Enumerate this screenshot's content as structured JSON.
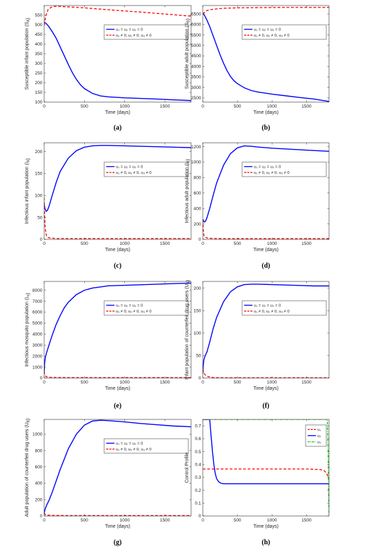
{
  "figure": {
    "x_axis_label": "Time (days)",
    "colors": {
      "no_control": "#0000ff",
      "with_control": "#ff0000",
      "u3": "#00cc00",
      "axis": "#262626"
    }
  },
  "chart_data": [
    {
      "type": "line",
      "caption": "(a)",
      "ylabel": "Susceptible infant population (S_A)",
      "xlim": [
        0,
        1825
      ],
      "ylim": [
        100,
        600
      ],
      "xticks": [
        "0",
        "500",
        "1000",
        "1500"
      ],
      "yticks": [
        "100",
        "150",
        "200",
        "250",
        "300",
        "350",
        "400",
        "450",
        "500",
        "550"
      ],
      "legend": [
        "u₁ = u₂ = u₃ = 0",
        "u₁ ≠ 0, u₂ ≠ 0, u₃ ≠ 0"
      ],
      "series": [
        {
          "style": "solid",
          "color": "#0000ff",
          "x": [
            0,
            30,
            60,
            100,
            150,
            200,
            250,
            300,
            350,
            400,
            450,
            500,
            600,
            700,
            800,
            1000,
            1200,
            1400,
            1600,
            1825
          ],
          "y": [
            515,
            505,
            490,
            465,
            430,
            385,
            340,
            295,
            253,
            218,
            190,
            170,
            145,
            132,
            127,
            122,
            119,
            116,
            112,
            108
          ]
        },
        {
          "style": "dashed",
          "color": "#ff0000",
          "x": [
            0,
            20,
            50,
            100,
            150,
            200,
            300,
            500,
            800,
            1000,
            1200,
            1500,
            1825
          ],
          "y": [
            500,
            545,
            580,
            594,
            596,
            595,
            593,
            588,
            578,
            572,
            566,
            556,
            545
          ]
        }
      ]
    },
    {
      "type": "line",
      "caption": "(b)",
      "ylabel": "Susceptible adult population (S_B)",
      "xlim": [
        0,
        1825
      ],
      "ylim": [
        2300,
        6900
      ],
      "xticks": [
        "0",
        "500",
        "1000",
        "1500"
      ],
      "yticks": [
        "2500",
        "3000",
        "3500",
        "4000",
        "4500",
        "5000",
        "5500",
        "6000",
        "6500"
      ],
      "legend": [
        "u₁ = u₂ = u₃ = 0",
        "u₁ ≠ 0, u₂ ≠ 0, u₃ ≠ 0"
      ],
      "series": [
        {
          "style": "solid",
          "color": "#0000ff",
          "x": [
            0,
            30,
            60,
            100,
            150,
            200,
            250,
            300,
            350,
            400,
            450,
            500,
            600,
            700,
            800,
            1000,
            1200,
            1400,
            1600,
            1825
          ],
          "y": [
            6550,
            6400,
            6200,
            5900,
            5450,
            5000,
            4550,
            4150,
            3800,
            3520,
            3320,
            3180,
            2980,
            2850,
            2780,
            2680,
            2600,
            2520,
            2450,
            2330
          ]
        },
        {
          "style": "dashed",
          "color": "#ff0000",
          "x": [
            0,
            50,
            100,
            200,
            300,
            500,
            800,
            1200,
            1500,
            1825
          ],
          "y": [
            6500,
            6650,
            6700,
            6740,
            6770,
            6790,
            6800,
            6810,
            6810,
            6810
          ]
        }
      ]
    },
    {
      "type": "line",
      "caption": "(c)",
      "ylabel": "Infectious infant population (I_A)",
      "xlim": [
        0,
        1825
      ],
      "ylim": [
        0,
        220
      ],
      "xticks": [
        "0",
        "500",
        "1000",
        "1500"
      ],
      "yticks": [
        "0",
        "50",
        "100",
        "150",
        "200"
      ],
      "legend": [
        "u₁ = u₂ = u₃ = 0",
        "u₁ ≠ 0, u₂ ≠ 0, u₃ ≠ 0"
      ],
      "series": [
        {
          "style": "solid",
          "color": "#0000ff",
          "x": [
            0,
            10,
            25,
            40,
            60,
            100,
            150,
            200,
            300,
            400,
            500,
            600,
            700,
            800,
            1000,
            1200,
            1400,
            1600,
            1825
          ],
          "y": [
            80,
            70,
            64,
            66,
            75,
            100,
            130,
            155,
            185,
            202,
            210,
            213,
            214,
            214,
            213,
            212,
            211,
            210,
            209
          ]
        },
        {
          "style": "dashed",
          "color": "#ff0000",
          "x": [
            0,
            5,
            10,
            20,
            30,
            50,
            80,
            150,
            300,
            1000,
            1825
          ],
          "y": [
            95,
            60,
            35,
            15,
            8,
            4,
            3,
            2,
            2,
            2,
            2
          ]
        }
      ]
    },
    {
      "type": "line",
      "caption": "(d)",
      "ylabel": "Infectious adult population (I_B)",
      "xlim": [
        0,
        1825
      ],
      "ylim": [
        0,
        1250
      ],
      "xticks": [
        "0",
        "500",
        "1000",
        "1500"
      ],
      "yticks": [
        "0",
        "200",
        "400",
        "600",
        "800",
        "1000",
        "1200"
      ],
      "legend": [
        "u₁ = u₂ = u₃ = 0",
        "u₁ ≠ 0, u₂ ≠ 0, u₃ ≠ 0"
      ],
      "series": [
        {
          "style": "solid",
          "color": "#0000ff",
          "x": [
            0,
            10,
            25,
            40,
            60,
            100,
            150,
            200,
            300,
            400,
            500,
            600,
            700,
            800,
            1000,
            1200,
            1400,
            1600,
            1825
          ],
          "y": [
            260,
            240,
            225,
            235,
            280,
            400,
            570,
            730,
            960,
            1110,
            1185,
            1210,
            1205,
            1195,
            1180,
            1170,
            1160,
            1150,
            1140
          ]
        },
        {
          "style": "dashed",
          "color": "#ff0000",
          "x": [
            0,
            5,
            10,
            20,
            40,
            80,
            150,
            300,
            1000,
            1825
          ],
          "y": [
            250,
            150,
            80,
            40,
            25,
            15,
            12,
            10,
            10,
            10
          ]
        }
      ]
    },
    {
      "type": "line",
      "caption": "(e)",
      "ylabel": "Infectious mosquito population (I_m)",
      "xlim": [
        0,
        1825
      ],
      "ylim": [
        0,
        8800
      ],
      "xticks": [
        "0",
        "500",
        "1000",
        "1500"
      ],
      "yticks": [
        "0",
        "1000",
        "2000",
        "3000",
        "4000",
        "5000",
        "6000",
        "7000",
        "8000"
      ],
      "legend": [
        "u₁ = u₂ = u₃ = 0",
        "u₁ ≠ 0, u₂ ≠ 0, u₃ ≠ 0"
      ],
      "series": [
        {
          "style": "solid",
          "color": "#0000ff",
          "x": [
            0,
            5,
            15,
            30,
            60,
            100,
            150,
            200,
            250,
            300,
            400,
            500,
            600,
            700,
            800,
            1000,
            1200,
            1400,
            1600,
            1825
          ],
          "y": [
            400,
            1300,
            1900,
            2300,
            3000,
            3900,
            4900,
            5700,
            6400,
            6900,
            7600,
            8000,
            8200,
            8300,
            8400,
            8450,
            8500,
            8550,
            8600,
            8650
          ]
        },
        {
          "style": "dashed",
          "color": "#ff0000",
          "x": [
            0,
            5,
            10,
            20,
            40,
            80,
            150,
            300,
            1000,
            1825
          ],
          "y": [
            600,
            400,
            250,
            150,
            90,
            60,
            45,
            40,
            40,
            40
          ]
        }
      ]
    },
    {
      "type": "line",
      "caption": "(f)",
      "ylabel": "Infant population of counterfeit drug users (U_A)",
      "xlim": [
        0,
        1825
      ],
      "ylim": [
        0,
        215
      ],
      "xticks": [
        "0",
        "500",
        "1000",
        "1500"
      ],
      "yticks": [
        "0",
        "50",
        "100",
        "150",
        "200"
      ],
      "legend": [
        "u₁ = u₂ = u₃ = 0",
        "u₁ ≠ 0, u₂ ≠ 0, u₃ ≠ 0"
      ],
      "series": [
        {
          "style": "solid",
          "color": "#0000ff",
          "x": [
            0,
            5,
            15,
            30,
            60,
            100,
            150,
            200,
            300,
            400,
            500,
            600,
            700,
            800,
            1000,
            1200,
            1400,
            1600,
            1825
          ],
          "y": [
            10,
            25,
            40,
            48,
            58,
            80,
            110,
            135,
            170,
            192,
            203,
            208,
            209,
            209,
            208,
            207,
            206,
            205,
            205
          ]
        },
        {
          "style": "dashed",
          "color": "#ff0000",
          "x": [
            0,
            5,
            10,
            20,
            40,
            80,
            150,
            300,
            1000,
            1825
          ],
          "y": [
            20,
            18,
            14,
            10,
            6,
            3,
            1,
            0.5,
            0.5,
            0.5
          ]
        }
      ]
    },
    {
      "type": "line",
      "caption": "(g)",
      "ylabel": "Adult population of counterfeit drug users (U_B)",
      "xlim": [
        0,
        1825
      ],
      "ylim": [
        0,
        1180
      ],
      "xticks": [
        "0",
        "500",
        "1000",
        "1500"
      ],
      "yticks": [
        "0",
        "200",
        "400",
        "600",
        "800",
        "1000"
      ],
      "legend": [
        "u₁ = u₂ = u₃ = 0",
        "u₁ ≠ 0, u₂ ≠ 0, u₃ ≠ 0"
      ],
      "series": [
        {
          "style": "solid",
          "color": "#0000ff",
          "x": [
            0,
            10,
            30,
            60,
            100,
            150,
            200,
            300,
            400,
            500,
            600,
            700,
            800,
            1000,
            1200,
            1400,
            1600,
            1825
          ],
          "y": [
            30,
            80,
            130,
            190,
            290,
            430,
            570,
            820,
            1000,
            1110,
            1160,
            1170,
            1165,
            1150,
            1130,
            1115,
            1100,
            1090
          ]
        },
        {
          "style": "dashed",
          "color": "#ff0000",
          "x": [
            0,
            5,
            10,
            20,
            40,
            80,
            150,
            300,
            1000,
            1825
          ],
          "y": [
            40,
            30,
            22,
            15,
            10,
            8,
            6,
            5,
            5,
            5
          ]
        }
      ]
    },
    {
      "type": "line",
      "caption": "(h)",
      "ylabel": "Control Profile",
      "xlim": [
        0,
        1825
      ],
      "ylim": [
        0,
        0.75
      ],
      "xticks": [
        "0",
        "500",
        "1000",
        "1500"
      ],
      "yticks": [
        "0",
        "0.1",
        "0.2",
        "0.3",
        "0.4",
        "0.5",
        "0.6",
        "0.7"
      ],
      "legend": [
        "u₁",
        "u₂",
        "u₃"
      ],
      "series": [
        {
          "style": "dashed",
          "color": "#ff0000",
          "x": [
            0,
            200,
            500,
            1000,
            1500,
            1700,
            1760,
            1800,
            1825
          ],
          "y": [
            0.365,
            0.365,
            0.365,
            0.365,
            0.365,
            0.36,
            0.35,
            0.32,
            0.28
          ]
        },
        {
          "style": "solid",
          "color": "#0000ff",
          "x": [
            0,
            100,
            120,
            140,
            160,
            180,
            200,
            230,
            260,
            300,
            400,
            600,
            1000,
            1500,
            1825
          ],
          "y": [
            0.75,
            0.75,
            0.62,
            0.5,
            0.4,
            0.33,
            0.29,
            0.265,
            0.255,
            0.25,
            0.25,
            0.25,
            0.25,
            0.25,
            0.25
          ]
        },
        {
          "style": "dashdot",
          "color": "#00cc00",
          "x": [
            0,
            500,
            1000,
            1500,
            1800,
            1812,
            1818,
            1825
          ],
          "y": [
            0.75,
            0.75,
            0.75,
            0.75,
            0.75,
            0.5,
            0.2,
            0
          ]
        }
      ]
    }
  ]
}
